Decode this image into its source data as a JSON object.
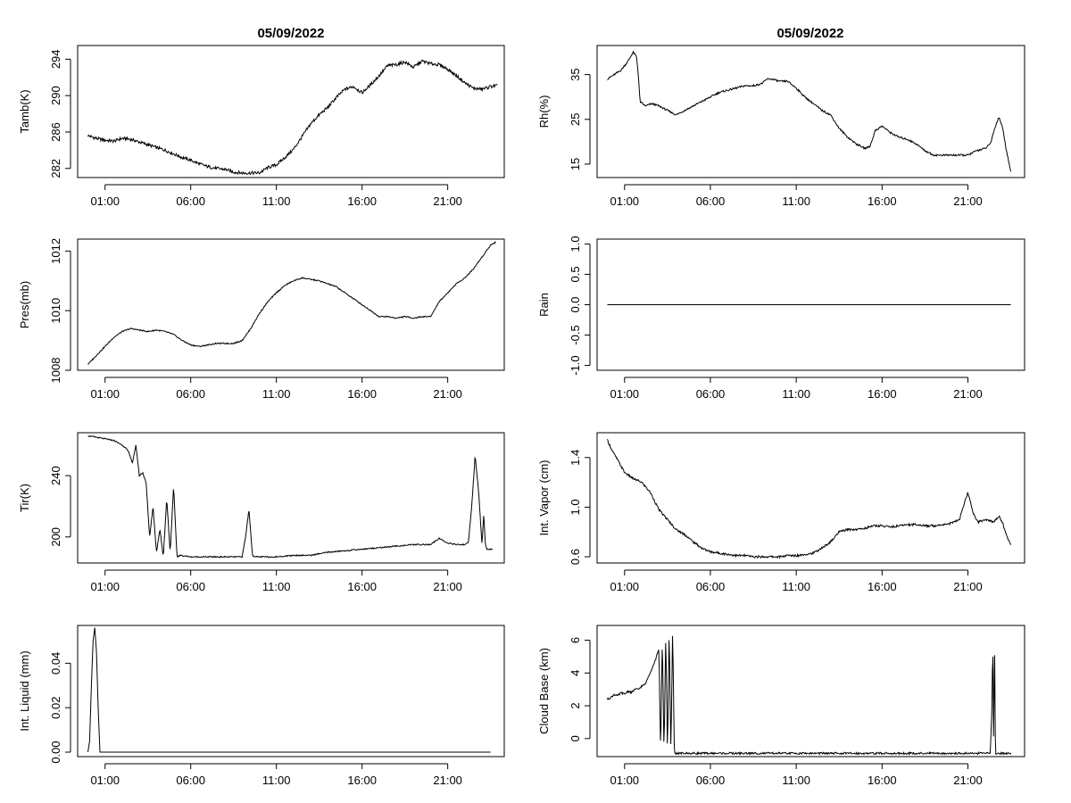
{
  "titles": {
    "left": "05/09/2022",
    "right": "05/09/2022"
  },
  "chart_data": [
    {
      "id": "tamb",
      "type": "line",
      "ylabel": "Tamb(K)",
      "xticks": [
        "01:00",
        "06:00",
        "11:00",
        "16:00",
        "21:00"
      ],
      "yticks": [
        "282",
        "286",
        "290",
        "294"
      ],
      "ylim": [
        281,
        295.5
      ],
      "x": [
        0.0,
        0.5,
        1.0,
        1.5,
        2.0,
        2.5,
        3.0,
        3.5,
        4.0,
        4.5,
        5.0,
        5.5,
        6.0,
        6.5,
        7.0,
        7.5,
        8.0,
        8.5,
        9.0,
        9.5,
        10.0,
        10.5,
        11.0,
        11.5,
        12.0,
        12.5,
        13.0,
        13.5,
        14.0,
        14.5,
        15.0,
        15.5,
        16.0,
        16.5,
        17.0,
        17.5,
        18.0,
        18.5,
        19.0,
        19.5,
        20.0,
        20.5,
        21.0,
        21.5,
        22.0,
        22.5,
        23.0,
        23.5,
        23.9
      ],
      "y": [
        285.6,
        285.3,
        285.1,
        285.0,
        285.3,
        285.2,
        284.9,
        284.6,
        284.3,
        284.0,
        283.6,
        283.2,
        282.9,
        282.5,
        282.2,
        282.0,
        281.9,
        281.6,
        281.5,
        281.5,
        281.5,
        282.1,
        282.4,
        283.2,
        284.1,
        285.5,
        286.9,
        287.9,
        288.7,
        289.8,
        290.7,
        291.0,
        290.3,
        291.2,
        292.2,
        293.3,
        293.4,
        293.7,
        293.1,
        293.8,
        293.5,
        293.4,
        292.9,
        292.2,
        291.4,
        290.8,
        290.7,
        291.0,
        291.1
      ],
      "noise": 0.35
    },
    {
      "id": "rh",
      "type": "line",
      "ylabel": "Rh(%)",
      "xticks": [
        "01:00",
        "06:00",
        "11:00",
        "16:00",
        "21:00"
      ],
      "yticks": [
        "15",
        "25",
        "35"
      ],
      "ylim": [
        12,
        41.5
      ],
      "x": [
        0.0,
        0.4,
        0.8,
        1.2,
        1.5,
        1.7,
        1.8,
        1.9,
        2.2,
        2.6,
        3.0,
        3.5,
        4.0,
        4.5,
        5.0,
        5.5,
        6.0,
        6.5,
        7.0,
        7.5,
        8.0,
        8.5,
        9.0,
        9.3,
        9.6,
        10.0,
        10.5,
        11.0,
        11.5,
        12.0,
        12.5,
        13.0,
        13.5,
        14.0,
        14.5,
        15.0,
        15.3,
        15.6,
        16.0,
        16.5,
        17.0,
        17.5,
        18.0,
        18.5,
        19.0,
        19.5,
        20.0,
        20.5,
        21.0,
        21.5,
        22.0,
        22.3,
        22.6,
        22.8,
        23.0,
        23.2,
        23.4,
        23.5
      ],
      "y": [
        34,
        35,
        36,
        38,
        40,
        39,
        35,
        29,
        28,
        28.5,
        28,
        27,
        26,
        27,
        28,
        29,
        30,
        31,
        31.5,
        32,
        32.5,
        32.5,
        33,
        34,
        34,
        33.5,
        33.5,
        32,
        30,
        28.5,
        27,
        26,
        23,
        21,
        19.5,
        18.5,
        19,
        22.5,
        23.5,
        22,
        21,
        20.5,
        19.5,
        18,
        17,
        17,
        17,
        17,
        17,
        18,
        18.5,
        19.5,
        23.5,
        25.5,
        23.5,
        19,
        15,
        13.5
      ],
      "noise": 0.4
    },
    {
      "id": "pres",
      "type": "line",
      "ylabel": "Pres(mb)",
      "xticks": [
        "01:00",
        "06:00",
        "11:00",
        "16:00",
        "21:00"
      ],
      "yticks": [
        "1008",
        "1010",
        "1012"
      ],
      "ylim": [
        1008,
        1012.4
      ],
      "x": [
        0.0,
        0.5,
        1.0,
        1.5,
        2.0,
        2.5,
        3.0,
        3.5,
        4.0,
        4.5,
        5.0,
        5.5,
        6.0,
        6.5,
        7.0,
        7.5,
        8.0,
        8.5,
        9.0,
        9.5,
        10.0,
        10.5,
        11.0,
        11.5,
        12.0,
        12.5,
        13.0,
        13.5,
        14.0,
        14.5,
        15.0,
        15.5,
        16.0,
        16.5,
        17.0,
        17.5,
        18.0,
        18.5,
        19.0,
        19.5,
        20.0,
        20.5,
        21.0,
        21.5,
        22.0,
        22.5,
        23.0,
        23.5,
        23.8
      ],
      "y": [
        1008.2,
        1008.5,
        1008.8,
        1009.1,
        1009.3,
        1009.4,
        1009.35,
        1009.3,
        1009.35,
        1009.3,
        1009.2,
        1009.0,
        1008.85,
        1008.8,
        1008.85,
        1008.9,
        1008.9,
        1008.9,
        1009.0,
        1009.4,
        1009.9,
        1010.3,
        1010.6,
        1010.85,
        1011.0,
        1011.1,
        1011.05,
        1011.0,
        1010.9,
        1010.8,
        1010.6,
        1010.4,
        1010.2,
        1010.0,
        1009.8,
        1009.8,
        1009.75,
        1009.8,
        1009.75,
        1009.8,
        1009.8,
        1010.3,
        1010.6,
        1010.9,
        1011.1,
        1011.4,
        1011.8,
        1012.2,
        1012.3
      ],
      "noise": 0.04
    },
    {
      "id": "rain",
      "type": "line",
      "ylabel": "Rain",
      "xticks": [
        "01:00",
        "06:00",
        "11:00",
        "16:00",
        "21:00"
      ],
      "yticks": [
        "-1.0",
        "-0.5",
        "0.0",
        "0.5",
        "1.0"
      ],
      "ylim": [
        -1.08,
        1.08
      ],
      "x": [
        0.0,
        23.5
      ],
      "y": [
        0,
        0
      ],
      "noise": 0
    },
    {
      "id": "tir",
      "type": "line",
      "ylabel": "Tir(K)",
      "xticks": [
        "01:00",
        "06:00",
        "11:00",
        "16:00",
        "21:00"
      ],
      "yticks": [
        "200",
        "240"
      ],
      "ylim": [
        183,
        268
      ],
      "x": [
        0.0,
        0.5,
        1.0,
        1.5,
        2.0,
        2.2,
        2.4,
        2.6,
        2.8,
        3.0,
        3.2,
        3.4,
        3.6,
        3.8,
        4.0,
        4.2,
        4.4,
        4.6,
        4.8,
        5.0,
        5.2,
        5.4,
        6.0,
        7.0,
        8.0,
        9.0,
        9.2,
        9.4,
        9.6,
        9.8,
        10.0,
        11.0,
        12.0,
        13.0,
        14.0,
        15.0,
        16.0,
        17.0,
        18.0,
        19.0,
        20.0,
        20.5,
        21.0,
        21.5,
        22.0,
        22.2,
        22.4,
        22.6,
        22.8,
        23.0,
        23.1,
        23.2,
        23.3,
        23.6
      ],
      "y": [
        266,
        265,
        264,
        263,
        260,
        258,
        255,
        248,
        260,
        240,
        242,
        235,
        200,
        220,
        190,
        205,
        187,
        225,
        190,
        233,
        187,
        188,
        187,
        187,
        187,
        187,
        200,
        218,
        188,
        187,
        187,
        187,
        188,
        188,
        190,
        191,
        192,
        193,
        194,
        195,
        195,
        199,
        196,
        195,
        195,
        196,
        220,
        253,
        230,
        195,
        215,
        195,
        192,
        192
      ],
      "noise": 0.8
    },
    {
      "id": "vapor",
      "type": "line",
      "ylabel": "Int. Vapor (cm)",
      "xticks": [
        "01:00",
        "06:00",
        "11:00",
        "16:00",
        "21:00"
      ],
      "yticks": [
        "0.6",
        "1.0",
        "1.4"
      ],
      "ylim": [
        0.55,
        1.6
      ],
      "x": [
        0.0,
        0.3,
        0.6,
        1.0,
        1.5,
        2.0,
        2.5,
        3.0,
        3.5,
        4.0,
        4.5,
        5.0,
        5.5,
        6.0,
        6.5,
        7.0,
        7.5,
        8.0,
        8.5,
        9.0,
        9.5,
        10.0,
        10.5,
        11.0,
        11.5,
        12.0,
        12.5,
        13.0,
        13.5,
        14.0,
        14.5,
        15.0,
        15.5,
        16.0,
        16.5,
        17.0,
        17.5,
        18.0,
        18.5,
        19.0,
        19.5,
        20.0,
        20.5,
        21.0,
        21.3,
        21.6,
        22.0,
        22.5,
        22.8,
        23.0,
        23.3,
        23.5
      ],
      "y": [
        1.54,
        1.45,
        1.38,
        1.28,
        1.23,
        1.2,
        1.12,
        0.98,
        0.9,
        0.82,
        0.78,
        0.72,
        0.67,
        0.64,
        0.63,
        0.62,
        0.61,
        0.61,
        0.6,
        0.6,
        0.6,
        0.6,
        0.61,
        0.61,
        0.62,
        0.63,
        0.67,
        0.72,
        0.8,
        0.82,
        0.82,
        0.83,
        0.85,
        0.85,
        0.84,
        0.85,
        0.86,
        0.86,
        0.85,
        0.85,
        0.86,
        0.87,
        0.9,
        1.12,
        0.95,
        0.88,
        0.9,
        0.88,
        0.93,
        0.88,
        0.75,
        0.7
      ],
      "noise": 0.018
    },
    {
      "id": "liquid",
      "type": "line",
      "ylabel": "Int. Liquid (mm)",
      "xticks": [
        "01:00",
        "06:00",
        "11:00",
        "16:00",
        "21:00"
      ],
      "yticks": [
        "0.00",
        "0.02",
        "0.04"
      ],
      "ylim": [
        -0.002,
        0.057
      ],
      "x": [
        0.0,
        0.1,
        0.2,
        0.3,
        0.4,
        0.5,
        0.6,
        0.7,
        0.8,
        0.9,
        23.5
      ],
      "y": [
        0,
        0.005,
        0.03,
        0.05,
        0.056,
        0.045,
        0.02,
        0,
        0,
        0,
        0
      ],
      "noise": 0
    },
    {
      "id": "cloudbase",
      "type": "line",
      "ylabel": "Cloud Base (km)",
      "xticks": [
        "01:00",
        "06:00",
        "11:00",
        "16:00",
        "21:00"
      ],
      "yticks": [
        "0",
        "2",
        "4",
        "6"
      ],
      "ylim": [
        -1.1,
        6.9
      ],
      "x": [
        0.0,
        0.2,
        0.4,
        0.6,
        0.8,
        1.0,
        1.2,
        1.4,
        1.6,
        1.8,
        2.0,
        2.2,
        2.4,
        2.6,
        2.8,
        3.0,
        3.1,
        3.2,
        3.3,
        3.4,
        3.5,
        3.6,
        3.7,
        3.8,
        3.9,
        4.0,
        4.1,
        4.2,
        22.3,
        22.4,
        22.45,
        22.5,
        22.55,
        22.6,
        22.65,
        23.5
      ],
      "y": [
        2.4,
        2.5,
        2.7,
        2.6,
        2.8,
        2.7,
        2.9,
        2.8,
        3.0,
        3.0,
        3.2,
        3.3,
        3.8,
        4.3,
        4.8,
        5.5,
        -0.9,
        6.2,
        -0.9,
        6.5,
        -0.9,
        6.6,
        -0.9,
        6.7,
        -0.9,
        -0.9,
        -0.9,
        -0.9,
        -0.9,
        2.0,
        6.3,
        -0.9,
        6.6,
        -0.9,
        -0.9,
        -0.9
      ],
      "noise": 0.12
    }
  ]
}
